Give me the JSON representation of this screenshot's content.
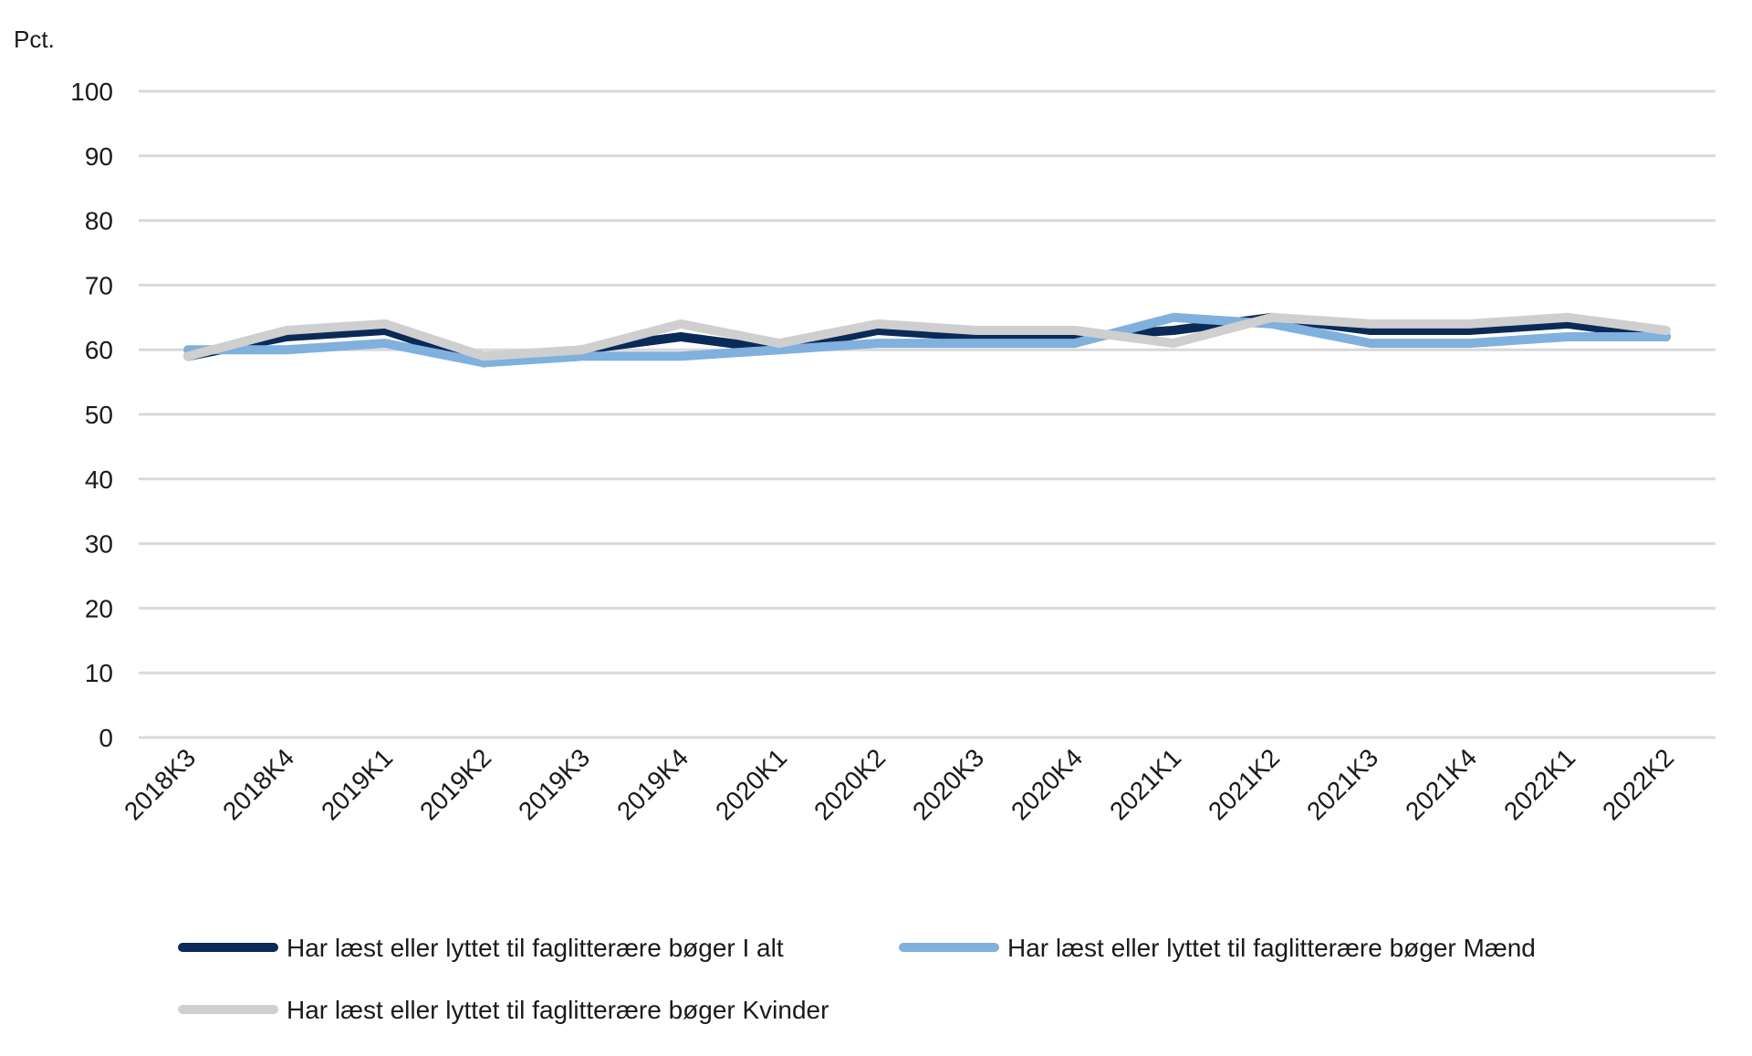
{
  "chart_data": {
    "type": "line",
    "ylabel": "Pct.",
    "xlabel": "",
    "ylim": [
      0,
      100
    ],
    "yticks": [
      0,
      10,
      20,
      30,
      40,
      50,
      60,
      70,
      80,
      90,
      100
    ],
    "grid": true,
    "legend_position": "bottom",
    "categories": [
      "2018K3",
      "2018K4",
      "2019K1",
      "2019K2",
      "2019K3",
      "2019K4",
      "2020K1",
      "2020K2",
      "2020K3",
      "2020K4",
      "2021K1",
      "2021K2",
      "2021K3",
      "2021K4",
      "2022K1",
      "2022K2"
    ],
    "series": [
      {
        "name": "Har læst eller lyttet til faglitterære bøger I alt",
        "color": "#0b2a57",
        "values": [
          59,
          62,
          63,
          58,
          60,
          62,
          60,
          63,
          62,
          62,
          63,
          65,
          63,
          63,
          64,
          62
        ]
      },
      {
        "name": "Har læst eller lyttet til faglitterære bøger Mænd",
        "color": "#7fb0de",
        "values": [
          60,
          60,
          61,
          58,
          59,
          59,
          60,
          61,
          61,
          61,
          65,
          64,
          61,
          61,
          62,
          62
        ]
      },
      {
        "name": "Har læst eller lyttet til faglitterære bøger Kvinder",
        "color": "#cfcfcf",
        "values": [
          59,
          63,
          64,
          59,
          60,
          64,
          61,
          64,
          63,
          63,
          61,
          65,
          64,
          64,
          65,
          63
        ]
      }
    ]
  }
}
